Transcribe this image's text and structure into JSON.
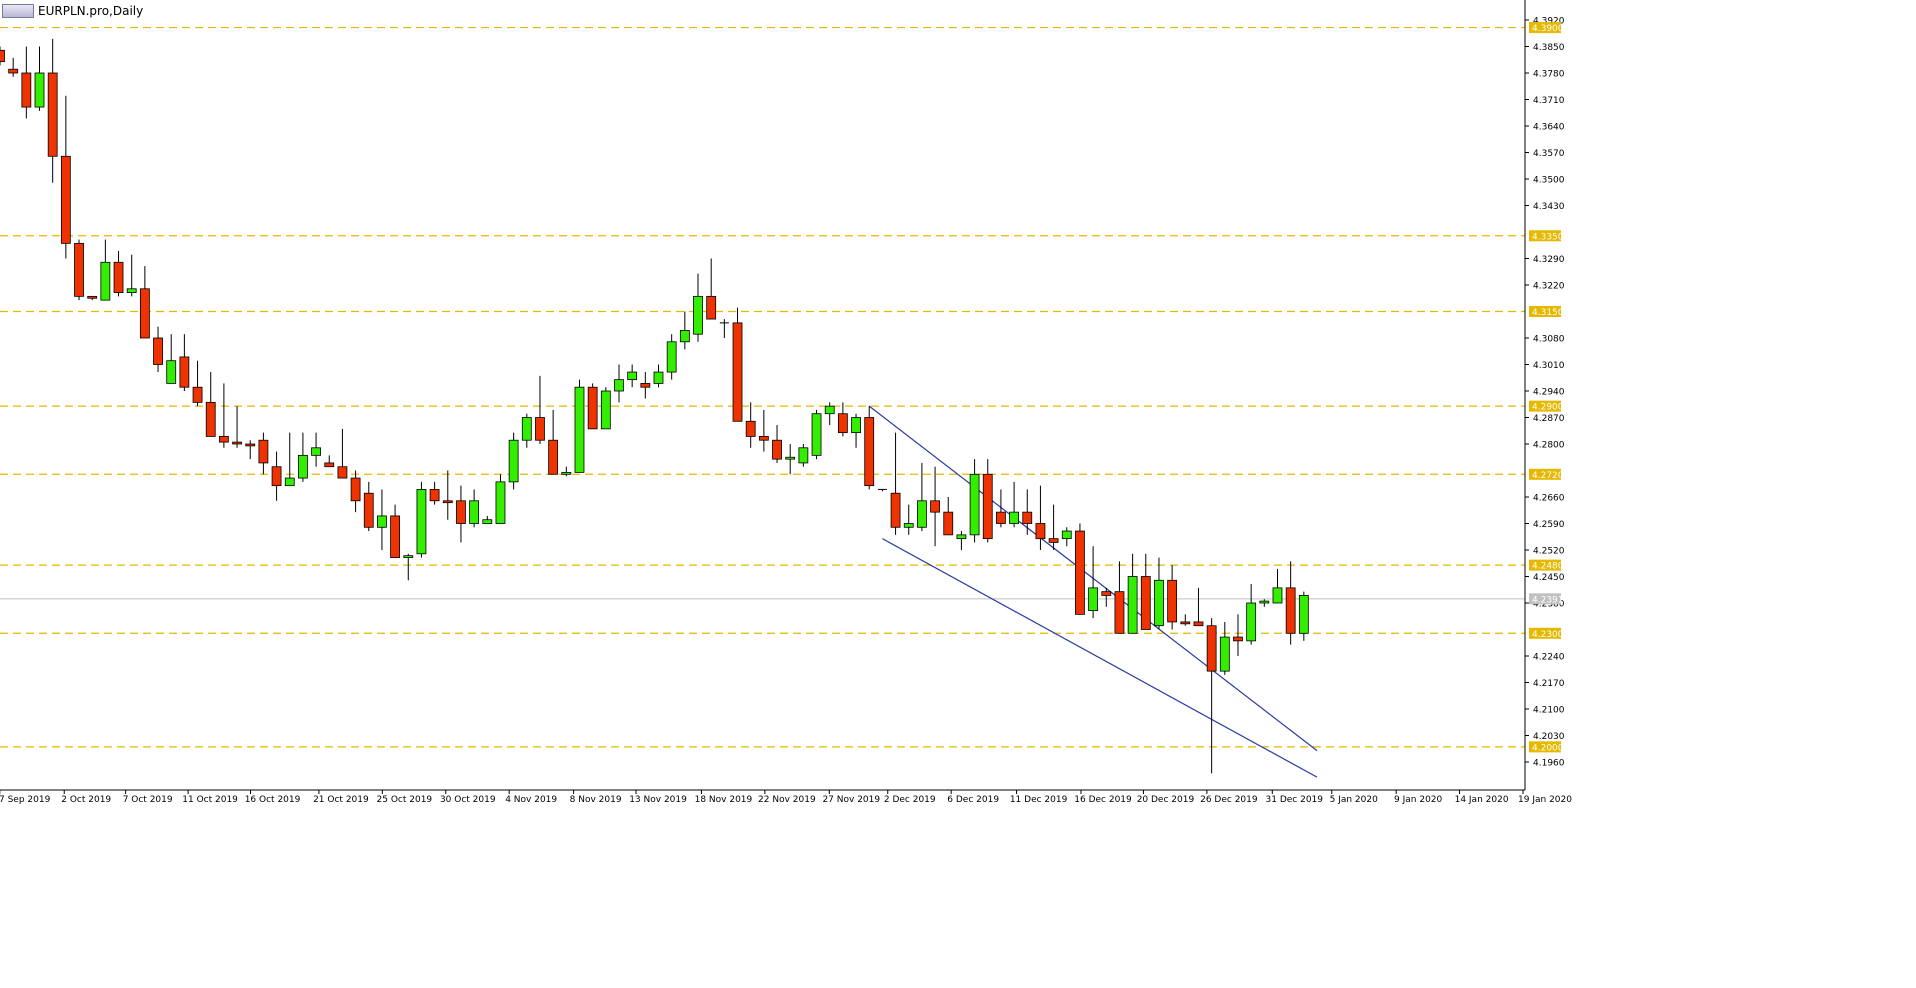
{
  "window": {
    "title": "EURPLN.pro,Daily"
  },
  "colors": {
    "bull": "#33ee00",
    "bear": "#ee3300",
    "level_line": "#e6b800",
    "channel": "#2a3aa0",
    "axis": "#000000",
    "level_badge_bg": "#e6b800",
    "current_badge_bg": "#c0c0c0"
  },
  "chart_data": {
    "type": "candlestick",
    "symbol": "EURPLN.pro",
    "timeframe": "Daily",
    "title": "EURPLN.pro,Daily",
    "ylim": [
      4.192,
      4.395
    ],
    "y_ticks": [
      "4.3920",
      "4.3850",
      "4.3780",
      "4.3710",
      "4.3640",
      "4.3570",
      "4.3500",
      "4.3430",
      "4.3290",
      "4.3220",
      "4.3080",
      "4.3010",
      "4.2940",
      "4.2870",
      "4.2800",
      "4.2660",
      "4.2590",
      "4.2520",
      "4.2450",
      "4.2380",
      "4.2240",
      "4.2170",
      "4.2100",
      "4.2030",
      "4.1960"
    ],
    "x_labels": [
      "27 Sep 2019",
      "2 Oct 2019",
      "7 Oct 2019",
      "11 Oct 2019",
      "16 Oct 2019",
      "21 Oct 2019",
      "25 Oct 2019",
      "30 Oct 2019",
      "4 Nov 2019",
      "8 Nov 2019",
      "13 Nov 2019",
      "18 Nov 2019",
      "22 Nov 2019",
      "27 Nov 2019",
      "2 Dec 2019",
      "6 Dec 2019",
      "11 Dec 2019",
      "16 Dec 2019",
      "20 Dec 2019",
      "26 Dec 2019",
      "31 Dec 2019",
      "5 Jan 2020",
      "9 Jan 2020",
      "14 Jan 2020",
      "19 Jan 2020"
    ],
    "levels": [
      "4.3900",
      "4.3350",
      "4.3150",
      "4.2900",
      "4.2720",
      "4.2480",
      "4.2300",
      "4.2000"
    ],
    "current_price": "4.2391",
    "candles": [
      {
        "o": 4.384,
        "h": 4.385,
        "l": 4.38,
        "c": 4.381
      },
      {
        "o": 4.379,
        "h": 4.382,
        "l": 4.377,
        "c": 4.378
      },
      {
        "o": 4.378,
        "h": 4.385,
        "l": 4.366,
        "c": 4.369
      },
      {
        "o": 4.369,
        "h": 4.385,
        "l": 4.368,
        "c": 4.378
      },
      {
        "o": 4.378,
        "h": 4.387,
        "l": 4.349,
        "c": 4.356
      },
      {
        "o": 4.356,
        "h": 4.372,
        "l": 4.329,
        "c": 4.333
      },
      {
        "o": 4.333,
        "h": 4.334,
        "l": 4.318,
        "c": 4.319
      },
      {
        "o": 4.319,
        "h": 4.319,
        "l": 4.318,
        "c": 4.3185
      },
      {
        "o": 4.318,
        "h": 4.334,
        "l": 4.318,
        "c": 4.328
      },
      {
        "o": 4.328,
        "h": 4.331,
        "l": 4.319,
        "c": 4.32
      },
      {
        "o": 4.32,
        "h": 4.33,
        "l": 4.319,
        "c": 4.321
      },
      {
        "o": 4.321,
        "h": 4.327,
        "l": 4.308,
        "c": 4.308
      },
      {
        "o": 4.308,
        "h": 4.311,
        "l": 4.299,
        "c": 4.301
      },
      {
        "o": 4.296,
        "h": 4.309,
        "l": 4.296,
        "c": 4.302
      },
      {
        "o": 4.303,
        "h": 4.309,
        "l": 4.294,
        "c": 4.295
      },
      {
        "o": 4.295,
        "h": 4.302,
        "l": 4.29,
        "c": 4.291
      },
      {
        "o": 4.291,
        "h": 4.299,
        "l": 4.282,
        "c": 4.282
      },
      {
        "o": 4.282,
        "h": 4.296,
        "l": 4.279,
        "c": 4.2805
      },
      {
        "o": 4.2805,
        "h": 4.29,
        "l": 4.279,
        "c": 4.28
      },
      {
        "o": 4.28,
        "h": 4.281,
        "l": 4.276,
        "c": 4.2795
      },
      {
        "o": 4.281,
        "h": 4.283,
        "l": 4.272,
        "c": 4.275
      },
      {
        "o": 4.274,
        "h": 4.278,
        "l": 4.265,
        "c": 4.269
      },
      {
        "o": 4.269,
        "h": 4.283,
        "l": 4.269,
        "c": 4.271
      },
      {
        "o": 4.271,
        "h": 4.283,
        "l": 4.27,
        "c": 4.277
      },
      {
        "o": 4.277,
        "h": 4.283,
        "l": 4.274,
        "c": 4.279
      },
      {
        "o": 4.275,
        "h": 4.277,
        "l": 4.274,
        "c": 4.274
      },
      {
        "o": 4.274,
        "h": 4.284,
        "l": 4.271,
        "c": 4.271
      },
      {
        "o": 4.271,
        "h": 4.273,
        "l": 4.262,
        "c": 4.265
      },
      {
        "o": 4.267,
        "h": 4.27,
        "l": 4.257,
        "c": 4.258
      },
      {
        "o": 4.258,
        "h": 4.268,
        "l": 4.252,
        "c": 4.261
      },
      {
        "o": 4.261,
        "h": 4.264,
        "l": 4.25,
        "c": 4.25
      },
      {
        "o": 4.25,
        "h": 4.251,
        "l": 4.244,
        "c": 4.2505
      },
      {
        "o": 4.251,
        "h": 4.27,
        "l": 4.25,
        "c": 4.268
      },
      {
        "o": 4.268,
        "h": 4.27,
        "l": 4.264,
        "c": 4.265
      },
      {
        "o": 4.265,
        "h": 4.273,
        "l": 4.26,
        "c": 4.2645
      },
      {
        "o": 4.265,
        "h": 4.269,
        "l": 4.254,
        "c": 4.259
      },
      {
        "o": 4.259,
        "h": 4.268,
        "l": 4.258,
        "c": 4.265
      },
      {
        "o": 4.259,
        "h": 4.261,
        "l": 4.259,
        "c": 4.26
      },
      {
        "o": 4.259,
        "h": 4.272,
        "l": 4.259,
        "c": 4.27
      },
      {
        "o": 4.27,
        "h": 4.283,
        "l": 4.268,
        "c": 4.281
      },
      {
        "o": 4.281,
        "h": 4.288,
        "l": 4.279,
        "c": 4.287
      },
      {
        "o": 4.287,
        "h": 4.298,
        "l": 4.28,
        "c": 4.281
      },
      {
        "o": 4.281,
        "h": 4.289,
        "l": 4.272,
        "c": 4.272
      },
      {
        "o": 4.272,
        "h": 4.274,
        "l": 4.2715,
        "c": 4.2725
      },
      {
        "o": 4.2725,
        "h": 4.297,
        "l": 4.2725,
        "c": 4.295
      },
      {
        "o": 4.295,
        "h": 4.296,
        "l": 4.284,
        "c": 4.284
      },
      {
        "o": 4.284,
        "h": 4.295,
        "l": 4.284,
        "c": 4.294
      },
      {
        "o": 4.294,
        "h": 4.301,
        "l": 4.291,
        "c": 4.297
      },
      {
        "o": 4.297,
        "h": 4.301,
        "l": 4.295,
        "c": 4.299
      },
      {
        "o": 4.296,
        "h": 4.299,
        "l": 4.292,
        "c": 4.295
      },
      {
        "o": 4.296,
        "h": 4.301,
        "l": 4.295,
        "c": 4.299
      },
      {
        "o": 4.299,
        "h": 4.309,
        "l": 4.297,
        "c": 4.307
      },
      {
        "o": 4.307,
        "h": 4.315,
        "l": 4.305,
        "c": 4.31
      },
      {
        "o": 4.309,
        "h": 4.325,
        "l": 4.307,
        "c": 4.319
      },
      {
        "o": 4.319,
        "h": 4.329,
        "l": 4.313,
        "c": 4.313
      },
      {
        "o": 4.312,
        "h": 4.313,
        "l": 4.308,
        "c": 4.312
      },
      {
        "o": 4.312,
        "h": 4.316,
        "l": 4.286,
        "c": 4.286
      },
      {
        "o": 4.286,
        "h": 4.291,
        "l": 4.279,
        "c": 4.282
      },
      {
        "o": 4.282,
        "h": 4.289,
        "l": 4.278,
        "c": 4.281
      },
      {
        "o": 4.281,
        "h": 4.285,
        "l": 4.275,
        "c": 4.276
      },
      {
        "o": 4.276,
        "h": 4.28,
        "l": 4.272,
        "c": 4.2765
      },
      {
        "o": 4.275,
        "h": 4.28,
        "l": 4.274,
        "c": 4.279
      },
      {
        "o": 4.277,
        "h": 4.289,
        "l": 4.276,
        "c": 4.288
      },
      {
        "o": 4.288,
        "h": 4.291,
        "l": 4.285,
        "c": 4.29
      },
      {
        "o": 4.288,
        "h": 4.291,
        "l": 4.282,
        "c": 4.283
      },
      {
        "o": 4.283,
        "h": 4.288,
        "l": 4.279,
        "c": 4.287
      },
      {
        "o": 4.287,
        "h": 4.29,
        "l": 4.268,
        "c": 4.269
      },
      {
        "o": 4.268,
        "h": 4.268,
        "l": 4.2675,
        "c": 4.2677
      },
      {
        "o": 4.267,
        "h": 4.283,
        "l": 4.256,
        "c": 4.258
      },
      {
        "o": 4.258,
        "h": 4.264,
        "l": 4.256,
        "c": 4.259
      },
      {
        "o": 4.258,
        "h": 4.275,
        "l": 4.257,
        "c": 4.265
      },
      {
        "o": 4.265,
        "h": 4.274,
        "l": 4.253,
        "c": 4.262
      },
      {
        "o": 4.262,
        "h": 4.266,
        "l": 4.256,
        "c": 4.256
      },
      {
        "o": 4.255,
        "h": 4.257,
        "l": 4.252,
        "c": 4.256
      },
      {
        "o": 4.256,
        "h": 4.276,
        "l": 4.254,
        "c": 4.272
      },
      {
        "o": 4.272,
        "h": 4.276,
        "l": 4.254,
        "c": 4.255
      },
      {
        "o": 4.262,
        "h": 4.268,
        "l": 4.258,
        "c": 4.259
      },
      {
        "o": 4.259,
        "h": 4.27,
        "l": 4.258,
        "c": 4.262
      },
      {
        "o": 4.262,
        "h": 4.268,
        "l": 4.256,
        "c": 4.259
      },
      {
        "o": 4.259,
        "h": 4.269,
        "l": 4.252,
        "c": 4.255
      },
      {
        "o": 4.255,
        "h": 4.264,
        "l": 4.252,
        "c": 4.254
      },
      {
        "o": 4.255,
        "h": 4.258,
        "l": 4.253,
        "c": 4.257
      },
      {
        "o": 4.257,
        "h": 4.259,
        "l": 4.235,
        "c": 4.235
      },
      {
        "o": 4.236,
        "h": 4.253,
        "l": 4.234,
        "c": 4.242
      },
      {
        "o": 4.241,
        "h": 4.242,
        "l": 4.237,
        "c": 4.24
      },
      {
        "o": 4.241,
        "h": 4.249,
        "l": 4.23,
        "c": 4.23
      },
      {
        "o": 4.23,
        "h": 4.251,
        "l": 4.23,
        "c": 4.245
      },
      {
        "o": 4.245,
        "h": 4.251,
        "l": 4.231,
        "c": 4.231
      },
      {
        "o": 4.232,
        "h": 4.25,
        "l": 4.231,
        "c": 4.244
      },
      {
        "o": 4.244,
        "h": 4.248,
        "l": 4.231,
        "c": 4.233
      },
      {
        "o": 4.233,
        "h": 4.235,
        "l": 4.232,
        "c": 4.2325
      },
      {
        "o": 4.233,
        "h": 4.242,
        "l": 4.232,
        "c": 4.232
      },
      {
        "o": 4.232,
        "h": 4.234,
        "l": 4.193,
        "c": 4.22
      },
      {
        "o": 4.22,
        "h": 4.233,
        "l": 4.219,
        "c": 4.229
      },
      {
        "o": 4.229,
        "h": 4.235,
        "l": 4.224,
        "c": 4.228
      },
      {
        "o": 4.228,
        "h": 4.243,
        "l": 4.227,
        "c": 4.238
      },
      {
        "o": 4.238,
        "h": 4.239,
        "l": 4.237,
        "c": 4.2385
      },
      {
        "o": 4.238,
        "h": 4.247,
        "l": 4.238,
        "c": 4.242
      },
      {
        "o": 4.242,
        "h": 4.249,
        "l": 4.227,
        "c": 4.23
      },
      {
        "o": 4.23,
        "h": 4.241,
        "l": 4.228,
        "c": 4.24
      }
    ],
    "channel": {
      "upper": [
        [
          66,
          4.29
        ],
        [
          100,
          4.199
        ]
      ],
      "lower": [
        [
          67,
          4.255
        ],
        [
          100,
          4.192
        ]
      ]
    }
  }
}
